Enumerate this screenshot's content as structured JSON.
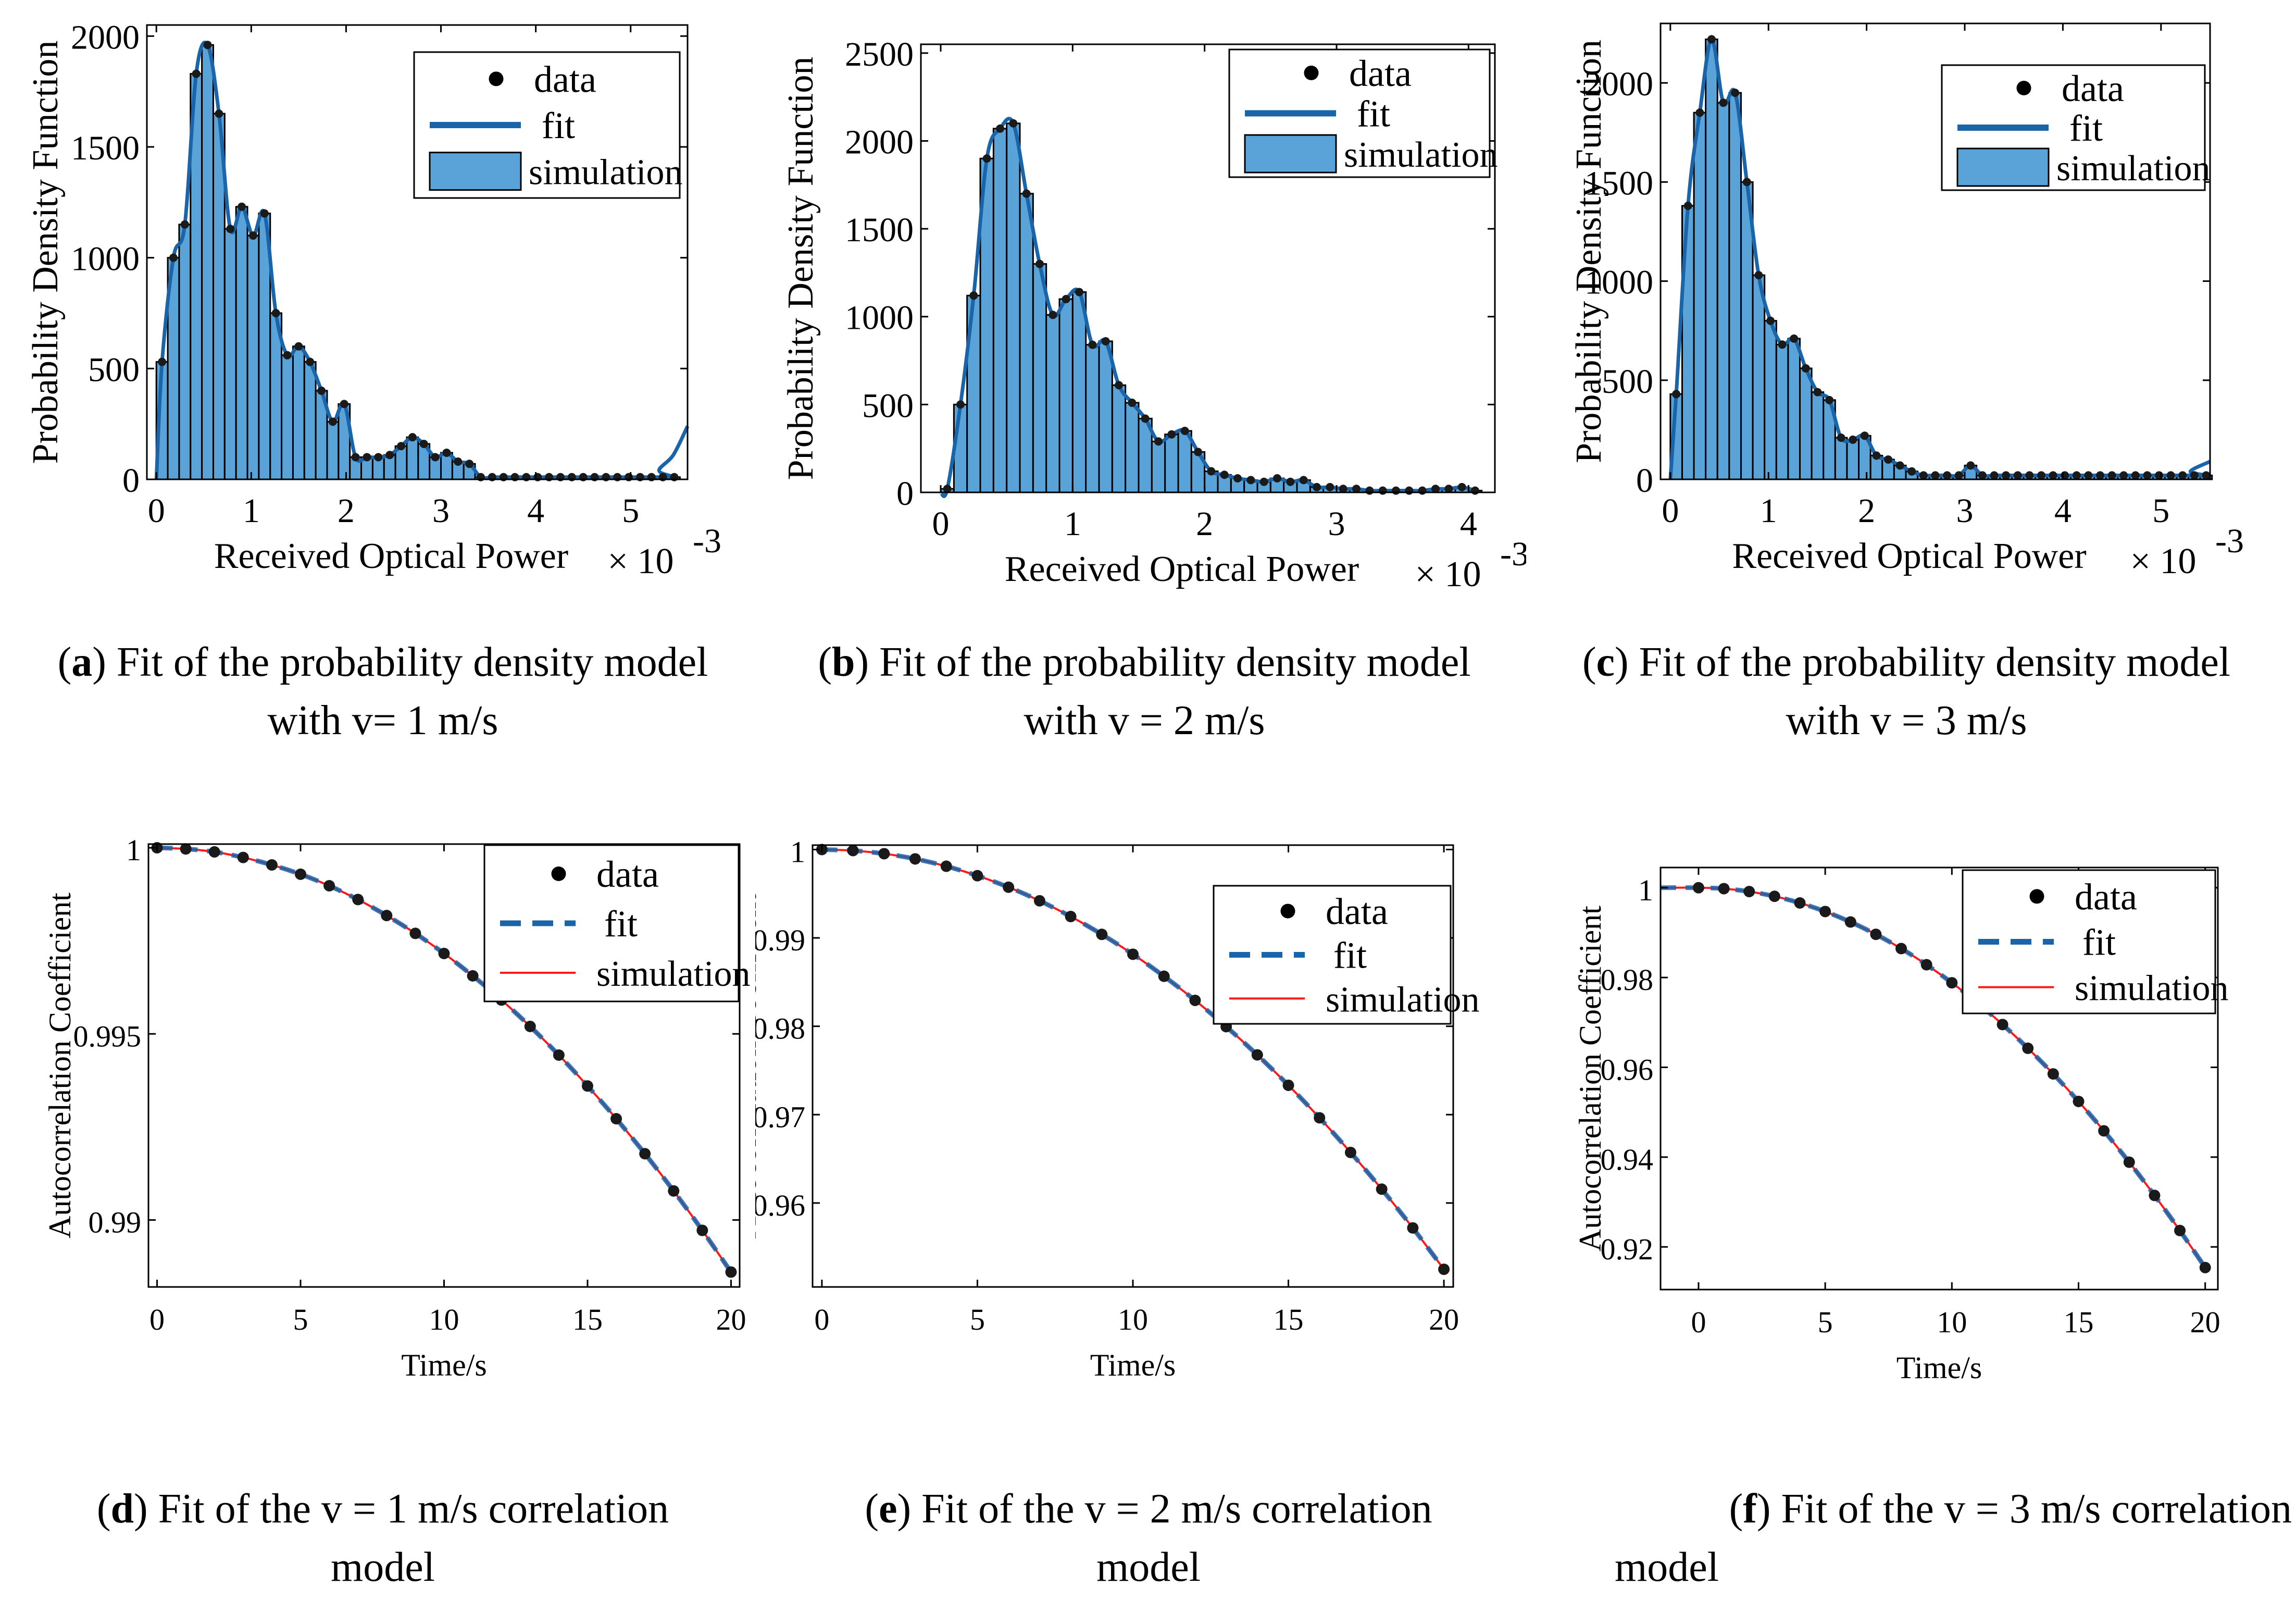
{
  "chart_data": [
    {
      "id": "a",
      "type": "bar",
      "xlabel": "Received Optical Power",
      "xmultiplier": "× 10",
      "xexponent": "-3",
      "ylabel": "Probability Density Function",
      "xlim": [
        -0.1,
        5.6
      ],
      "ylim": [
        0,
        2050
      ],
      "xticks": [
        0,
        1,
        2,
        3,
        4,
        5
      ],
      "yticks": [
        0,
        500,
        1000,
        1500,
        2000
      ],
      "bins": [
        0.06,
        0.18,
        0.3,
        0.42,
        0.54,
        0.66,
        0.78,
        0.9,
        1.02,
        1.14,
        1.26,
        1.38,
        1.5,
        1.62,
        1.74,
        1.86,
        1.98,
        2.1,
        2.22,
        2.34,
        2.46,
        2.58,
        2.7,
        2.82,
        2.94,
        3.06,
        3.18,
        3.3,
        3.42,
        3.54,
        3.66,
        3.78,
        3.9,
        4.02,
        4.14,
        4.26,
        4.38,
        4.5,
        4.62,
        4.74,
        4.86,
        4.98,
        5.1,
        5.22,
        5.34,
        5.46
      ],
      "values": [
        530,
        1000,
        1150,
        1830,
        1960,
        1650,
        1130,
        1230,
        1100,
        1200,
        750,
        560,
        600,
        530,
        400,
        260,
        340,
        100,
        100,
        100,
        110,
        150,
        190,
        160,
        100,
        120,
        80,
        70,
        10,
        10,
        10,
        10,
        10,
        10,
        10,
        10,
        10,
        10,
        10,
        10,
        10,
        10,
        10,
        10,
        10,
        10
      ],
      "fit_tail": [
        [
          5.3,
          40
        ],
        [
          5.45,
          110
        ],
        [
          5.6,
          240
        ]
      ],
      "legend": [
        "data",
        "fit",
        "simulation"
      ],
      "caption_label": "a",
      "caption_lines": [
        "Fit of the probability density model",
        "with v= 1 m/s"
      ]
    },
    {
      "id": "b",
      "type": "bar",
      "xlabel": "Received Optical Power",
      "xmultiplier": "× 10",
      "xexponent": "-3",
      "ylabel": "Probability Density Function",
      "xlim": [
        -0.15,
        4.2
      ],
      "ylim": [
        0,
        2550
      ],
      "xticks": [
        0,
        1,
        2,
        3,
        4
      ],
      "yticks": [
        0,
        500,
        1000,
        1500,
        2000,
        2500
      ],
      "bins": [
        0.05,
        0.15,
        0.25,
        0.35,
        0.45,
        0.55,
        0.65,
        0.75,
        0.85,
        0.95,
        1.05,
        1.15,
        1.25,
        1.35,
        1.45,
        1.55,
        1.65,
        1.75,
        1.85,
        1.95,
        2.05,
        2.15,
        2.25,
        2.35,
        2.45,
        2.55,
        2.65,
        2.75,
        2.85,
        2.95,
        3.05,
        3.15,
        3.25,
        3.35,
        3.45,
        3.55,
        3.65,
        3.75,
        3.85,
        3.95,
        4.05
      ],
      "values": [
        20,
        500,
        1120,
        1900,
        2070,
        2100,
        1700,
        1300,
        1010,
        1100,
        1140,
        840,
        860,
        610,
        510,
        420,
        290,
        330,
        350,
        230,
        120,
        100,
        80,
        70,
        60,
        80,
        60,
        70,
        30,
        30,
        20,
        20,
        10,
        10,
        10,
        10,
        10,
        20,
        20,
        30,
        10
      ],
      "legend": [
        "data",
        "fit",
        "simulation"
      ],
      "caption_label": "b",
      "caption_lines": [
        "Fit of the probability density model",
        "with v = 2 m/s"
      ]
    },
    {
      "id": "c",
      "type": "bar",
      "xlabel": "Received Optical Power",
      "xmultiplier": "× 10",
      "xexponent": "-3",
      "ylabel": "Probability Density Function",
      "xlim": [
        -0.1,
        5.5
      ],
      "ylim": [
        0,
        2300
      ],
      "xticks": [
        0,
        1,
        2,
        3,
        4,
        5
      ],
      "yticks": [
        0,
        500,
        1000,
        1500,
        2000
      ],
      "bins": [
        0.06,
        0.18,
        0.3,
        0.42,
        0.54,
        0.66,
        0.78,
        0.9,
        1.02,
        1.14,
        1.26,
        1.38,
        1.5,
        1.62,
        1.74,
        1.86,
        1.98,
        2.1,
        2.22,
        2.34,
        2.46,
        2.58,
        2.7,
        2.82,
        2.94,
        3.06,
        3.18,
        3.3,
        3.42,
        3.54,
        3.66,
        3.78,
        3.9,
        4.02,
        4.14,
        4.26,
        4.38,
        4.5,
        4.62,
        4.74,
        4.86,
        4.98,
        5.1,
        5.22,
        5.34,
        5.46
      ],
      "values": [
        430,
        1380,
        1850,
        2220,
        1900,
        1950,
        1500,
        1030,
        800,
        680,
        710,
        560,
        440,
        400,
        210,
        200,
        220,
        120,
        100,
        70,
        40,
        20,
        20,
        20,
        20,
        70,
        20,
        20,
        20,
        20,
        20,
        20,
        20,
        20,
        20,
        20,
        20,
        20,
        20,
        20,
        20,
        20,
        20,
        20,
        20,
        20
      ],
      "fit_tail": [
        [
          5.3,
          40
        ],
        [
          5.5,
          90
        ]
      ],
      "legend": [
        "data",
        "fit",
        "simulation"
      ],
      "caption_label": "c",
      "caption_lines": [
        "Fit of the probability density model",
        "with v = 3 m/s"
      ]
    },
    {
      "id": "d",
      "type": "line",
      "xlabel": "Time/s",
      "ylabel": "Autocorrelation Coefficient",
      "xlim": [
        -0.3,
        20.3
      ],
      "ylim": [
        0.9882,
        1.0001
      ],
      "xticks": [
        0,
        5,
        10,
        15,
        20
      ],
      "yticks": [
        0.99,
        0.995,
        1
      ],
      "ytick_labels": [
        "0.99",
        "0.995",
        "1"
      ],
      "x": [
        0,
        1,
        2,
        3,
        4,
        5,
        6,
        7,
        8,
        9,
        10,
        11,
        12,
        13,
        14,
        15,
        16,
        17,
        18,
        19,
        20
      ],
      "y": [
        1,
        0.99997,
        0.99989,
        0.99974,
        0.99954,
        0.99929,
        0.99898,
        0.99861,
        0.99818,
        0.9977,
        0.99716,
        0.99656,
        0.99591,
        0.9952,
        0.99443,
        0.9936,
        0.99272,
        0.99178,
        0.99078,
        0.98972,
        0.9886
      ],
      "legend": [
        "data",
        "fit",
        "simulation"
      ],
      "caption_label": "d",
      "caption_lines": [
        "Fit of the v = 1 m/s correlation",
        "model"
      ]
    },
    {
      "id": "e",
      "type": "line",
      "xlabel": "Time/s",
      "ylabel": "Autocorrelation Coefficient",
      "xlim": [
        -0.3,
        20.3
      ],
      "ylim": [
        0.9505,
        1.0005
      ],
      "xticks": [
        0,
        5,
        10,
        15,
        20
      ],
      "yticks": [
        0.96,
        0.97,
        0.98,
        0.99,
        1
      ],
      "ytick_labels": [
        "0.96",
        "0.97",
        "0.98",
        "0.99",
        "1"
      ],
      "x": [
        0,
        1,
        2,
        3,
        4,
        5,
        6,
        7,
        8,
        9,
        10,
        11,
        12,
        13,
        14,
        15,
        16,
        17,
        18,
        19,
        20
      ],
      "y": [
        1,
        0.99988,
        0.99953,
        0.99894,
        0.99811,
        0.99704,
        0.99574,
        0.9942,
        0.99242,
        0.9904,
        0.98815,
        0.98566,
        0.98293,
        0.97996,
        0.97676,
        0.97332,
        0.96964,
        0.96572,
        0.96157,
        0.95718,
        0.9525
      ],
      "legend": [
        "data",
        "fit",
        "simulation"
      ],
      "caption_label": "e",
      "caption_lines": [
        "Fit of the v = 2 m/s correlation",
        "model"
      ]
    },
    {
      "id": "f",
      "type": "line",
      "xlabel": "Time/s",
      "ylabel": "Autocorrelation Coefficient",
      "xlim": [
        -1.5,
        20.5
      ],
      "ylim": [
        0.9105,
        1.0045
      ],
      "xticks": [
        0,
        5,
        10,
        15,
        20
      ],
      "yticks": [
        0.92,
        0.94,
        0.96,
        0.98,
        1
      ],
      "ytick_labels": [
        "0.92",
        "0.94",
        "0.96",
        "0.98",
        "1"
      ],
      "x": [
        0,
        1,
        2,
        3,
        4,
        5,
        6,
        7,
        8,
        9,
        10,
        11,
        12,
        13,
        14,
        15,
        16,
        17,
        18,
        19,
        20
      ],
      "y": [
        1,
        0.99979,
        0.99915,
        0.99809,
        0.99661,
        0.9947,
        0.99237,
        0.98962,
        0.98645,
        0.98285,
        0.97883,
        0.97439,
        0.96953,
        0.96424,
        0.95853,
        0.9524,
        0.94585,
        0.93887,
        0.93147,
        0.92365,
        0.9154
      ],
      "legend": [
        "data",
        "fit",
        "simulation"
      ],
      "caption_label": "f",
      "caption_lines": [
        "Fit of the v = 3 m/s correlation",
        "model"
      ]
    }
  ]
}
